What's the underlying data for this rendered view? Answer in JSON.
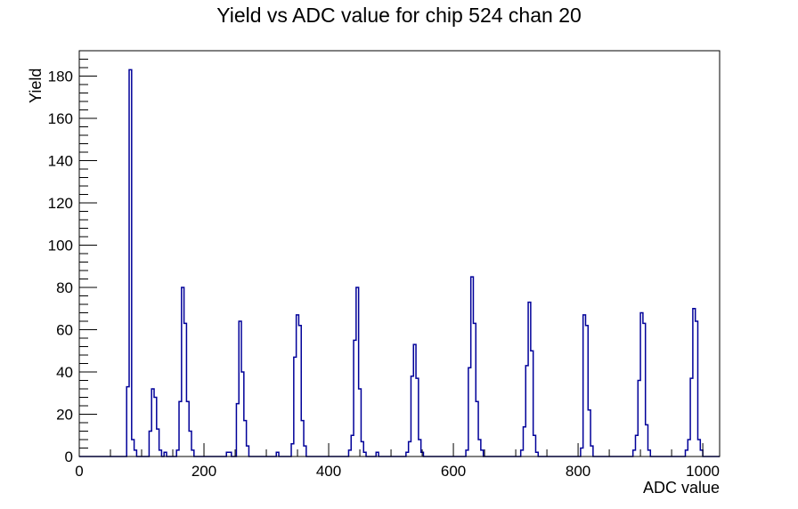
{
  "chart_data": {
    "type": "histogram-step",
    "title": "Yield vs ADC value for chip 524 chan 20",
    "xlabel": "ADC value",
    "ylabel": "Yield",
    "xlim": [
      0,
      1027
    ],
    "ylim": [
      0,
      192
    ],
    "bin_width": 4,
    "grid": false,
    "legend": "none",
    "line_color": "#000099",
    "axis_color": "#000000",
    "background_color": "#ffffff",
    "x_major_ticks": [
      0,
      200,
      400,
      600,
      800,
      1000
    ],
    "x_tick_labels": [
      "0",
      "200",
      "400",
      "600",
      "800",
      "1000"
    ],
    "x_minor_step": 50,
    "y_major_ticks": [
      0,
      20,
      40,
      60,
      80,
      100,
      120,
      140,
      160,
      180
    ],
    "y_tick_labels": [
      "0",
      "20",
      "40",
      "60",
      "80",
      "100",
      "120",
      "140",
      "160",
      "180"
    ],
    "y_minor_step": 4,
    "bins": [
      [
        76,
        33
      ],
      [
        80,
        183
      ],
      [
        84,
        8
      ],
      [
        88,
        3
      ],
      [
        112,
        12
      ],
      [
        116,
        32
      ],
      [
        120,
        28
      ],
      [
        124,
        13
      ],
      [
        128,
        3
      ],
      [
        136,
        2
      ],
      [
        156,
        3
      ],
      [
        160,
        26
      ],
      [
        164,
        80
      ],
      [
        168,
        63
      ],
      [
        172,
        26
      ],
      [
        176,
        12
      ],
      [
        180,
        3
      ],
      [
        236,
        2
      ],
      [
        240,
        2
      ],
      [
        252,
        25
      ],
      [
        256,
        64
      ],
      [
        260,
        40
      ],
      [
        264,
        17
      ],
      [
        268,
        5
      ],
      [
        316,
        2
      ],
      [
        340,
        6
      ],
      [
        344,
        47
      ],
      [
        348,
        67
      ],
      [
        352,
        62
      ],
      [
        356,
        17
      ],
      [
        360,
        5
      ],
      [
        432,
        3
      ],
      [
        436,
        10
      ],
      [
        440,
        55
      ],
      [
        444,
        80
      ],
      [
        448,
        32
      ],
      [
        452,
        7
      ],
      [
        456,
        2
      ],
      [
        476,
        2
      ],
      [
        524,
        2
      ],
      [
        528,
        7
      ],
      [
        532,
        38
      ],
      [
        536,
        53
      ],
      [
        540,
        37
      ],
      [
        544,
        8
      ],
      [
        548,
        2
      ],
      [
        620,
        3
      ],
      [
        624,
        42
      ],
      [
        628,
        85
      ],
      [
        632,
        63
      ],
      [
        636,
        26
      ],
      [
        640,
        8
      ],
      [
        644,
        3
      ],
      [
        708,
        3
      ],
      [
        712,
        14
      ],
      [
        716,
        43
      ],
      [
        720,
        73
      ],
      [
        724,
        50
      ],
      [
        728,
        10
      ],
      [
        732,
        2
      ],
      [
        804,
        4
      ],
      [
        808,
        67
      ],
      [
        812,
        62
      ],
      [
        816,
        22
      ],
      [
        820,
        5
      ],
      [
        888,
        3
      ],
      [
        892,
        10
      ],
      [
        896,
        36
      ],
      [
        900,
        68
      ],
      [
        904,
        63
      ],
      [
        908,
        15
      ],
      [
        912,
        3
      ],
      [
        972,
        3
      ],
      [
        976,
        8
      ],
      [
        980,
        37
      ],
      [
        984,
        70
      ],
      [
        988,
        64
      ],
      [
        992,
        8
      ],
      [
        996,
        3
      ]
    ]
  }
}
